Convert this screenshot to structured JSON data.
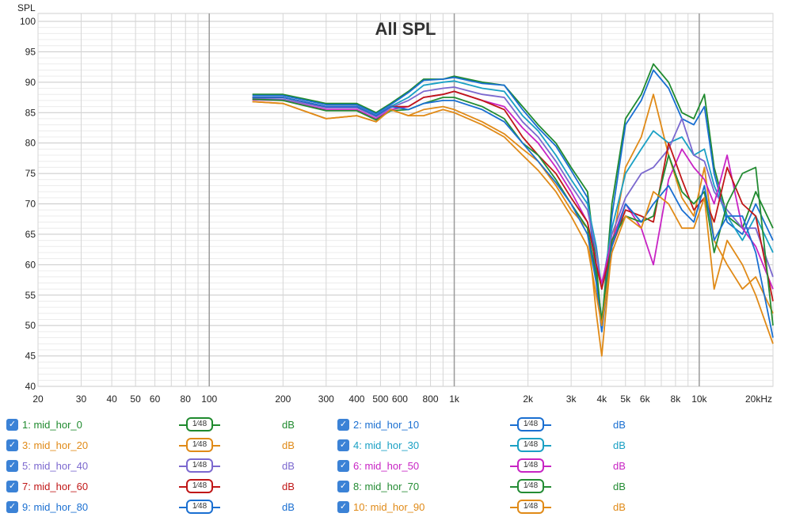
{
  "chart_data": {
    "type": "line",
    "title": "All SPL",
    "ylabel": "SPL",
    "xlabel": "",
    "x_scale": "log",
    "xlim": [
      20,
      20000
    ],
    "ylim": [
      40,
      100
    ],
    "x_ticks": [
      {
        "v": 20,
        "label": "20"
      },
      {
        "v": 30,
        "label": "30"
      },
      {
        "v": 40,
        "label": "40"
      },
      {
        "v": 50,
        "label": "50"
      },
      {
        "v": 60,
        "label": "60"
      },
      {
        "v": 80,
        "label": "80"
      },
      {
        "v": 100,
        "label": "100"
      },
      {
        "v": 200,
        "label": "200"
      },
      {
        "v": 300,
        "label": "300"
      },
      {
        "v": 400,
        "label": "400"
      },
      {
        "v": 500,
        "label": "500"
      },
      {
        "v": 600,
        "label": "600"
      },
      {
        "v": 800,
        "label": "800"
      },
      {
        "v": 1000,
        "label": "1k"
      },
      {
        "v": 2000,
        "label": "2k"
      },
      {
        "v": 3000,
        "label": "3k"
      },
      {
        "v": 4000,
        "label": "4k"
      },
      {
        "v": 5000,
        "label": "5k"
      },
      {
        "v": 6000,
        "label": "6k"
      },
      {
        "v": 8000,
        "label": "8k"
      },
      {
        "v": 10000,
        "label": "10k"
      },
      {
        "v": 20000,
        "label": "20kHz"
      }
    ],
    "y_ticks": [
      40,
      45,
      50,
      55,
      60,
      65,
      70,
      75,
      80,
      85,
      90,
      95,
      100
    ],
    "grid": true,
    "legend_position": "bottom",
    "x": [
      150,
      200,
      300,
      400,
      480,
      550,
      650,
      750,
      900,
      1000,
      1300,
      1600,
      1900,
      2200,
      2600,
      3000,
      3500,
      3800,
      4000,
      4400,
      5000,
      5800,
      6500,
      7500,
      8500,
      9500,
      10500,
      11500,
      13000,
      15000,
      17000,
      20000
    ],
    "series": [
      {
        "name": "1: mid_hor_0",
        "color": "#1f8a2e",
        "values": [
          88,
          88,
          86.5,
          86.5,
          85,
          86.5,
          88.5,
          90.5,
          90.5,
          91,
          90,
          89.5,
          86,
          83,
          80,
          76,
          72,
          60,
          50,
          70,
          84,
          88,
          93,
          90,
          85,
          84,
          88,
          76,
          68,
          66,
          72,
          66
        ]
      },
      {
        "name": "2: mid_hor_10",
        "color": "#1a6fd1",
        "values": [
          87.8,
          87.8,
          86.3,
          86.3,
          84.8,
          86.3,
          88.3,
          90.3,
          90.5,
          90.8,
          89.8,
          89.5,
          85.5,
          82.5,
          79.5,
          75.5,
          71,
          58,
          49,
          68,
          83,
          87,
          92,
          89,
          84,
          83,
          86,
          75,
          67,
          65,
          70,
          64
        ]
      },
      {
        "name": "3: mid_hor_20",
        "color": "#e08a17",
        "values": [
          86.8,
          86.5,
          84,
          84.5,
          83.5,
          85.5,
          84.5,
          85.5,
          86,
          85.5,
          83.5,
          81.5,
          79,
          77,
          73,
          69,
          66,
          52,
          45,
          63,
          76,
          81,
          88,
          78,
          71,
          68,
          76,
          64,
          60,
          56,
          58,
          52
        ]
      },
      {
        "name": "4: mid_hor_30",
        "color": "#1aa0c4",
        "values": [
          87.5,
          87.5,
          86,
          86,
          84.5,
          86,
          87.5,
          89.5,
          90,
          90.2,
          89,
          88.5,
          84.5,
          82,
          78,
          74,
          70,
          63,
          56,
          66,
          75,
          79,
          82,
          80,
          81,
          78,
          79,
          73,
          68,
          64,
          68,
          62
        ]
      },
      {
        "name": "5: mid_hor_40",
        "color": "#7b68cf",
        "values": [
          87.3,
          87.2,
          85.8,
          85.8,
          84.3,
          85.8,
          87,
          88.5,
          89,
          89.2,
          88,
          87.5,
          83.5,
          81,
          77,
          73,
          69,
          62,
          56,
          65,
          71,
          75,
          76,
          79,
          84,
          78,
          77,
          72,
          69,
          66,
          66,
          58
        ]
      },
      {
        "name": "6: mid_hor_50",
        "color": "#c824c4",
        "values": [
          87.1,
          87,
          85.5,
          85.5,
          84,
          85.5,
          86,
          87.5,
          88,
          88.5,
          87,
          86,
          82.5,
          80,
          76,
          72,
          67,
          60,
          57,
          64,
          70,
          66,
          60,
          74,
          79,
          76,
          74,
          70,
          78,
          66,
          63,
          56
        ]
      },
      {
        "name": "7: mid_hor_60",
        "color": "#c01717",
        "values": [
          87.5,
          87.5,
          86,
          86,
          84.5,
          86,
          86,
          87.5,
          88,
          88.5,
          87,
          85.5,
          81,
          78,
          75,
          71,
          67,
          60,
          56,
          63,
          69,
          68,
          67,
          80,
          74,
          69,
          71,
          67,
          76,
          70,
          68,
          54
        ]
      },
      {
        "name": "8: mid_hor_70",
        "color": "#248c34",
        "values": [
          87.2,
          87,
          85.3,
          85.3,
          83.8,
          85.3,
          85.5,
          86.5,
          87.5,
          87.5,
          86,
          84,
          80,
          78,
          74,
          70,
          66,
          58,
          51,
          64,
          68,
          67,
          68,
          78,
          72,
          70,
          72,
          62,
          70,
          75,
          76,
          50
        ]
      },
      {
        "name": "9: mid_hor_80",
        "color": "#1a6fd1",
        "values": [
          87.5,
          87.5,
          86,
          86,
          84.5,
          86,
          85.5,
          86.5,
          87,
          87,
          85.5,
          83.5,
          80,
          77,
          73.5,
          70,
          65,
          57,
          49,
          63,
          70,
          67,
          70,
          73,
          69,
          67,
          73,
          64,
          68,
          68,
          62,
          48
        ]
      },
      {
        "name": "10: mid_hor_90",
        "color": "#e08a17",
        "values": [
          86.8,
          86.5,
          84,
          84.5,
          83.5,
          85.5,
          84.5,
          84.5,
          85.5,
          85,
          83,
          81,
          78,
          75.5,
          72,
          68,
          63,
          55,
          50,
          62,
          68,
          66,
          72,
          70,
          66,
          66,
          71,
          56,
          64,
          60,
          55,
          47
        ]
      }
    ]
  },
  "legend": {
    "smoothing_label": "1⁄48",
    "unit": "dB",
    "check_glyph": "✓",
    "items": [
      {
        "name": "1: mid_hor_0",
        "color": "#1f8a2e"
      },
      {
        "name": "2: mid_hor_10",
        "color": "#1a6fd1"
      },
      {
        "name": "3: mid_hor_20",
        "color": "#e08a17"
      },
      {
        "name": "4: mid_hor_30",
        "color": "#1aa0c4"
      },
      {
        "name": "5: mid_hor_40",
        "color": "#7b68cf"
      },
      {
        "name": "6: mid_hor_50",
        "color": "#c824c4"
      },
      {
        "name": "7: mid_hor_60",
        "color": "#c01717"
      },
      {
        "name": "8: mid_hor_70",
        "color": "#248c34"
      },
      {
        "name": "9: mid_hor_80",
        "color": "#1a6fd1"
      },
      {
        "name": "10: mid_hor_90",
        "color": "#e08a17"
      }
    ]
  }
}
